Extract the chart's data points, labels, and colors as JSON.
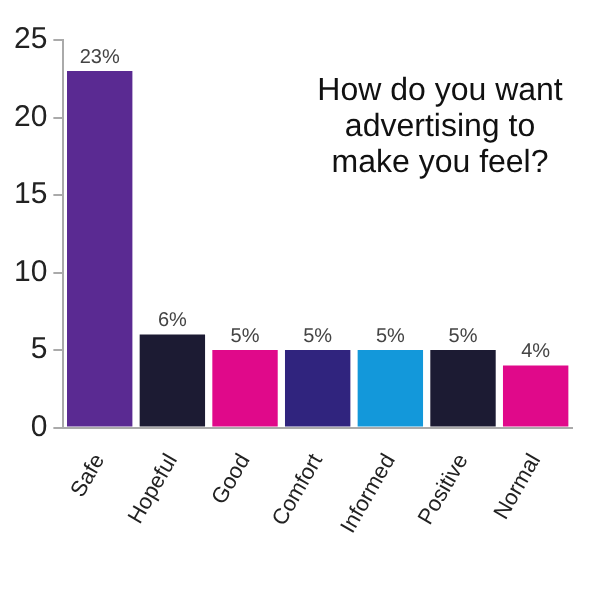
{
  "chart_data": {
    "type": "bar",
    "title": "How do you want advertising to make you feel?",
    "categories": [
      "Safe",
      "Hopeful",
      "Good",
      "Comfort",
      "Informed",
      "Positive",
      "Normal"
    ],
    "values": [
      23,
      6,
      5,
      5,
      5,
      5,
      4
    ],
    "colors": [
      "#5a2a92",
      "#1c1b33",
      "#e0098a",
      "#30247e",
      "#1398da",
      "#1c1b33",
      "#e0098a"
    ],
    "value_labels": [
      "23%",
      "6%",
      "5%",
      "5%",
      "5%",
      "5%",
      "4%"
    ],
    "ylim": [
      0,
      25
    ],
    "yticks": [
      0,
      5,
      10,
      15,
      20,
      25
    ],
    "grid": false,
    "legend": false
  }
}
